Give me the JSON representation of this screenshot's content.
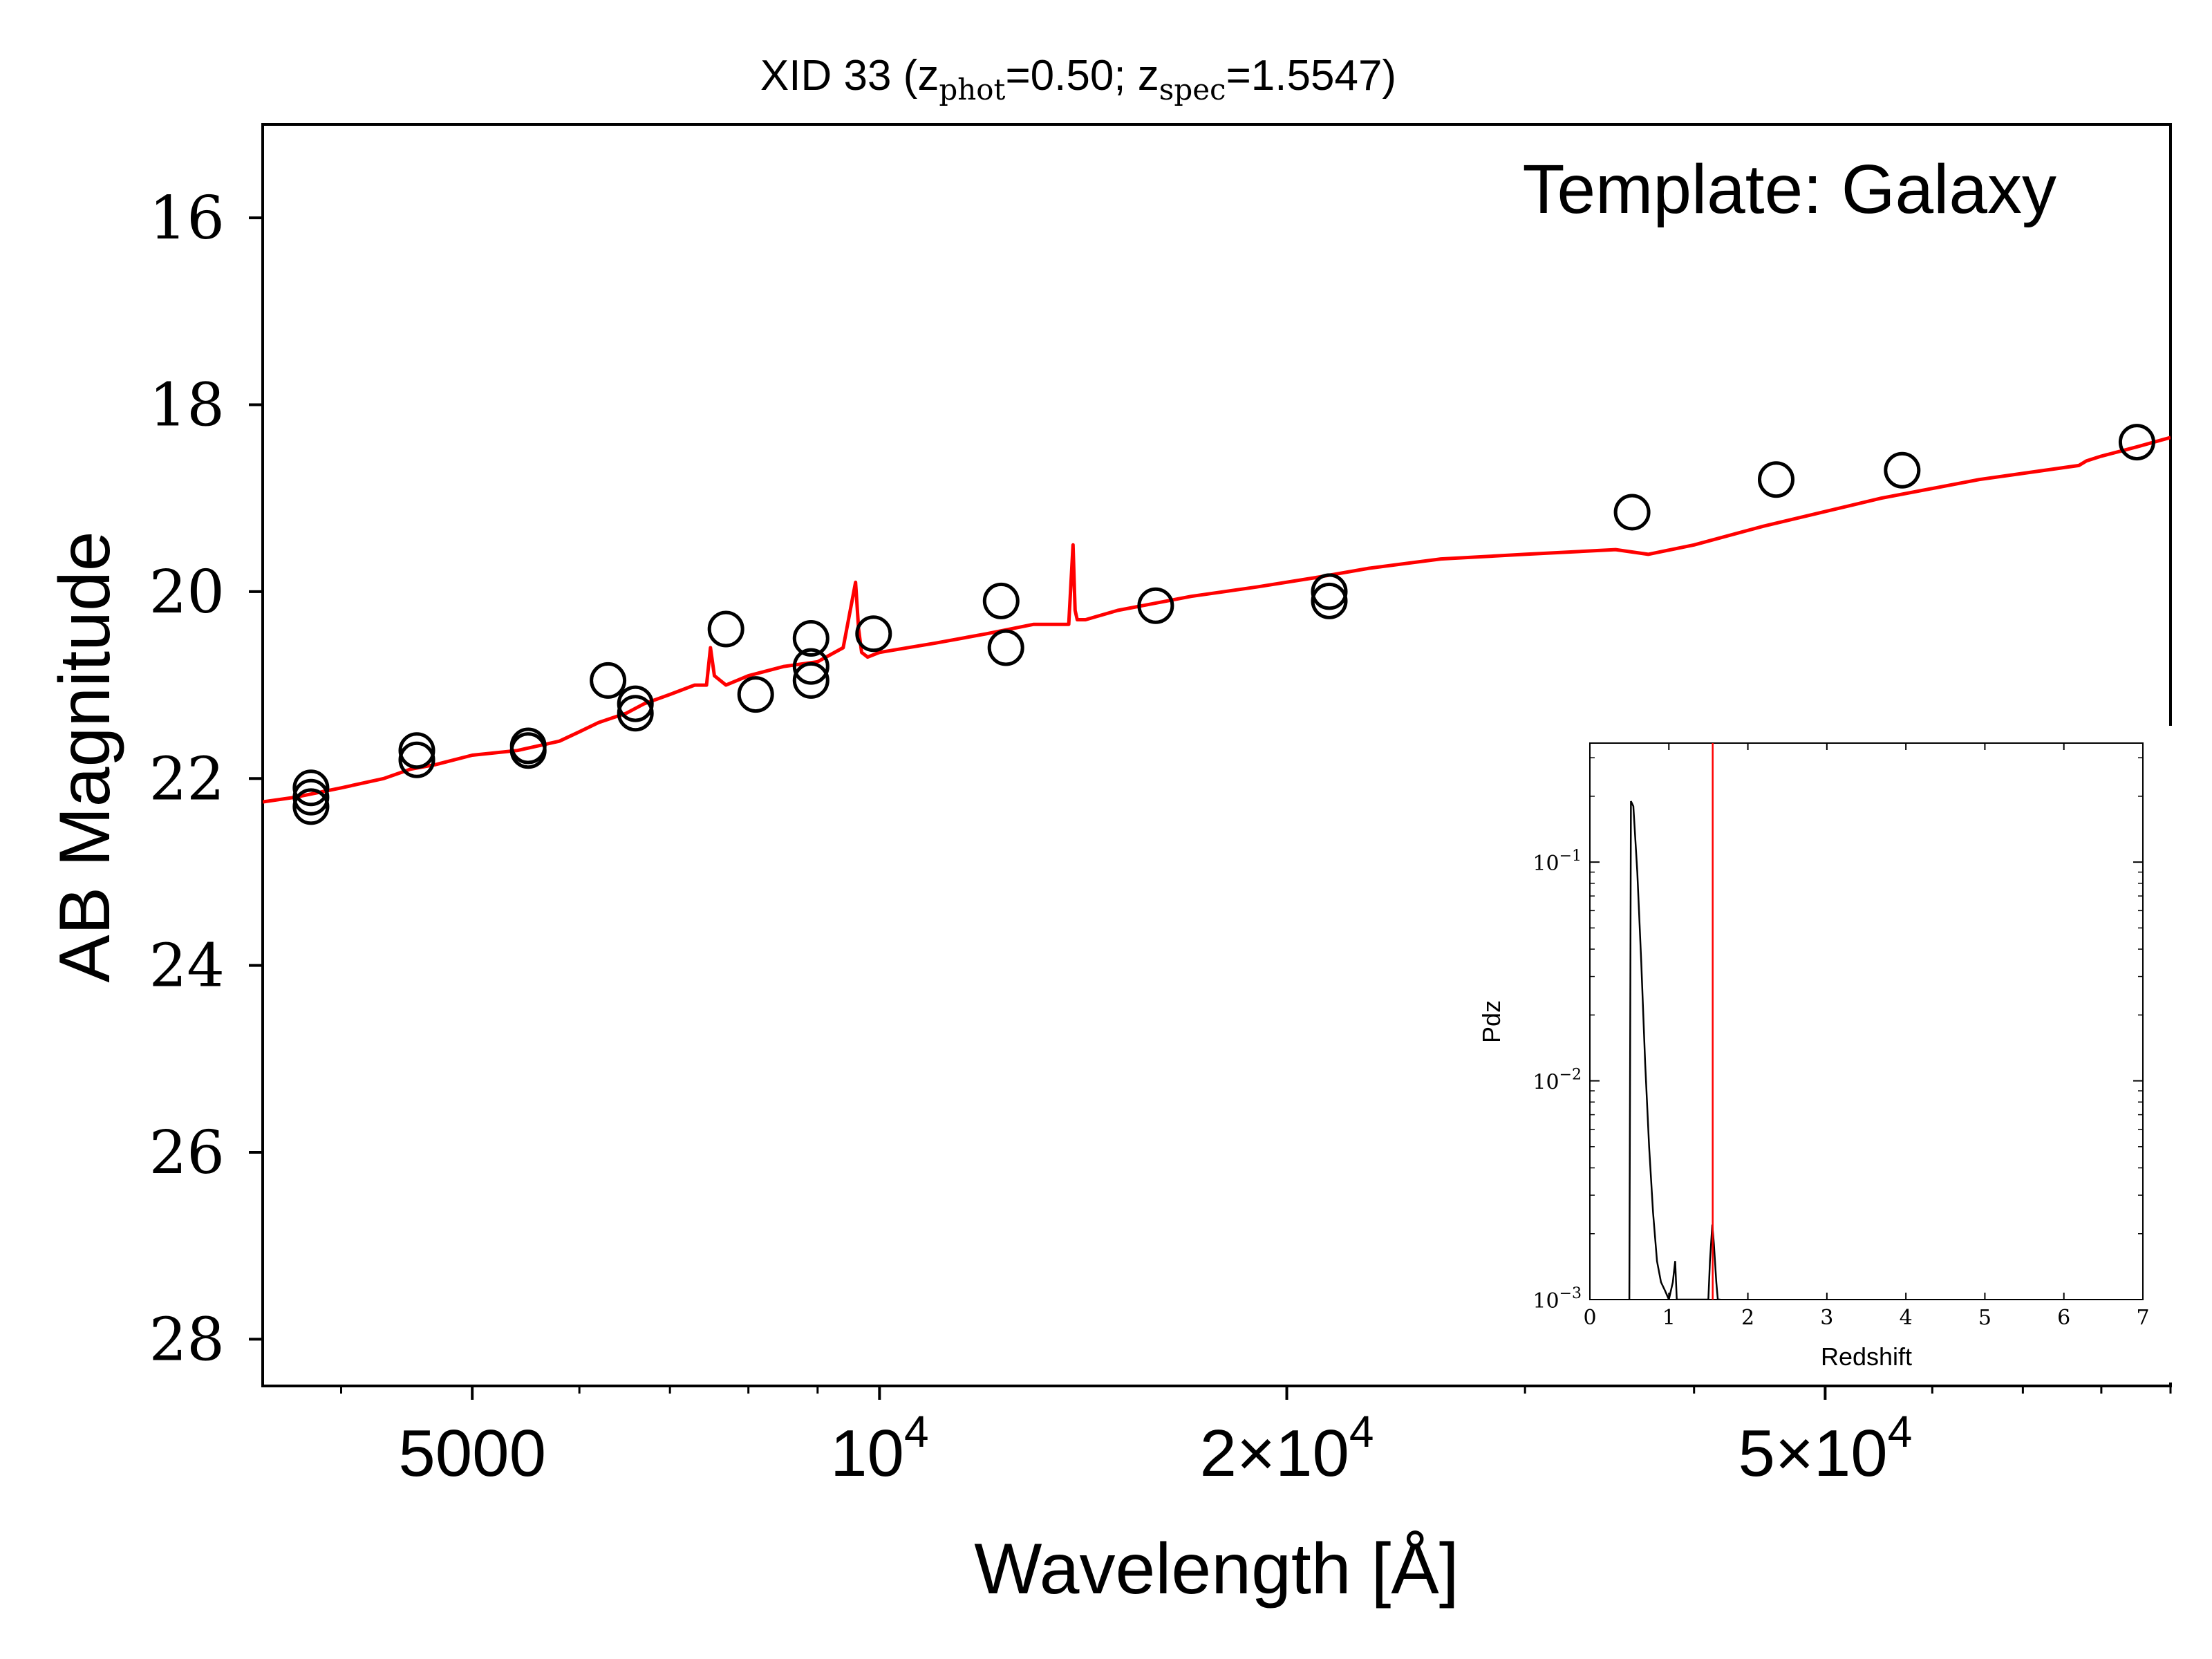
{
  "chart_data": [
    {
      "type": "scatter",
      "title": "XID 33 (z_phot=0.50; z_spec=1.5547)",
      "title_parts": {
        "prefix": "XID 33 (z",
        "sub1": "phot",
        "mid": "=0.50; z",
        "sub2": "spec",
        "suffix": "=1.5547)"
      },
      "annotation": "Template: Galaxy",
      "xlabel": "Wavelength [Å]",
      "ylabel": "AB Magnitude",
      "xscale": "log",
      "xlim": [
        3500,
        90000
      ],
      "ylim": [
        28.5,
        15.0
      ],
      "y_inverted": true,
      "yticks": [
        16,
        18,
        20,
        22,
        24,
        26,
        28
      ],
      "ytick_labels": [
        "16",
        "18",
        "20",
        "22",
        "24",
        "26",
        "28"
      ],
      "xticks": [
        {
          "value": 5000,
          "base": "5000",
          "exp": ""
        },
        {
          "value": 10000,
          "base": "10",
          "exp": "4"
        },
        {
          "value": 20000,
          "base": "2×10",
          "exp": "4"
        },
        {
          "value": 50000,
          "base": "5×10",
          "exp": "4"
        }
      ],
      "series": [
        {
          "kind": "points",
          "marker": "open-circle",
          "color": "#000000",
          "x": [
            3800,
            3800,
            3800,
            4550,
            4550,
            5500,
            5500,
            6300,
            6600,
            6600,
            7700,
            8100,
            8900,
            8900,
            8900,
            9900,
            12300,
            12400,
            16000,
            21500,
            21500,
            36000,
            46000,
            57000,
            85000
          ],
          "y": [
            22.1,
            22.3,
            22.2,
            21.7,
            21.8,
            21.65,
            21.7,
            20.95,
            21.2,
            21.3,
            20.4,
            21.1,
            20.5,
            20.8,
            20.95,
            20.45,
            20.1,
            20.6,
            20.15,
            20.0,
            20.1,
            19.15,
            18.8,
            18.7,
            18.4
          ]
        },
        {
          "kind": "line",
          "color": "#ff0000",
          "x": [
            3500,
            3700,
            4000,
            4300,
            4400,
            4500,
            4700,
            5000,
            5400,
            5800,
            6000,
            6200,
            6500,
            6700,
            7000,
            7300,
            7450,
            7500,
            7550,
            7700,
            8000,
            8500,
            9000,
            9400,
            9600,
            9650,
            9700,
            9800,
            10000,
            11000,
            12000,
            13000,
            13800,
            13900,
            13950,
            14000,
            14200,
            15000,
            17000,
            19000,
            21000,
            23000,
            26000,
            30000,
            35000,
            37000,
            40000,
            45000,
            55000,
            65000,
            77000,
            78000,
            80000,
            85000,
            90000
          ],
          "y": [
            22.25,
            22.2,
            22.1,
            22.0,
            21.95,
            21.9,
            21.85,
            21.75,
            21.7,
            21.6,
            21.5,
            21.4,
            21.3,
            21.2,
            21.1,
            21.0,
            21.0,
            20.6,
            20.9,
            21.0,
            20.9,
            20.8,
            20.75,
            20.6,
            19.9,
            20.4,
            20.65,
            20.7,
            20.65,
            20.55,
            20.45,
            20.35,
            20.35,
            19.5,
            20.2,
            20.3,
            20.3,
            20.2,
            20.05,
            19.95,
            19.85,
            19.75,
            19.65,
            19.6,
            19.55,
            19.6,
            19.5,
            19.3,
            19.0,
            18.8,
            18.65,
            18.6,
            18.55,
            18.45,
            18.35
          ]
        }
      ]
    },
    {
      "type": "line",
      "inset": true,
      "xlabel": "Redshift",
      "ylabel": "Pdz",
      "xlim": [
        0,
        7
      ],
      "xticks": [
        0,
        1,
        2,
        3,
        4,
        5,
        6,
        7
      ],
      "yscale": "log",
      "ylim": [
        0.001,
        0.35
      ],
      "yticks": [
        {
          "value": 0.1,
          "base": "10",
          "exp": "−1"
        },
        {
          "value": 0.01,
          "base": "10",
          "exp": "−2"
        },
        {
          "value": 0.001,
          "base": "10",
          "exp": "−3"
        }
      ],
      "pdz": {
        "color": "#000000",
        "x": [
          0.5,
          0.52,
          0.55,
          0.6,
          0.65,
          0.7,
          0.75,
          0.8,
          0.85,
          0.9,
          0.95,
          1.0,
          1.05,
          1.08,
          1.1,
          1.12,
          1.5,
          1.52,
          1.55,
          1.57,
          1.6,
          1.62,
          1.65
        ],
        "y": [
          0.001,
          0.19,
          0.18,
          0.09,
          0.035,
          0.012,
          0.005,
          0.0025,
          0.0015,
          0.0012,
          0.0011,
          0.001,
          0.0012,
          0.0015,
          0.001,
          0.001,
          0.001,
          0.0015,
          0.0022,
          0.0018,
          0.0012,
          0.001,
          0.001
        ]
      },
      "zspec_marker": {
        "value": 1.5547,
        "color": "#ff0000"
      }
    }
  ]
}
